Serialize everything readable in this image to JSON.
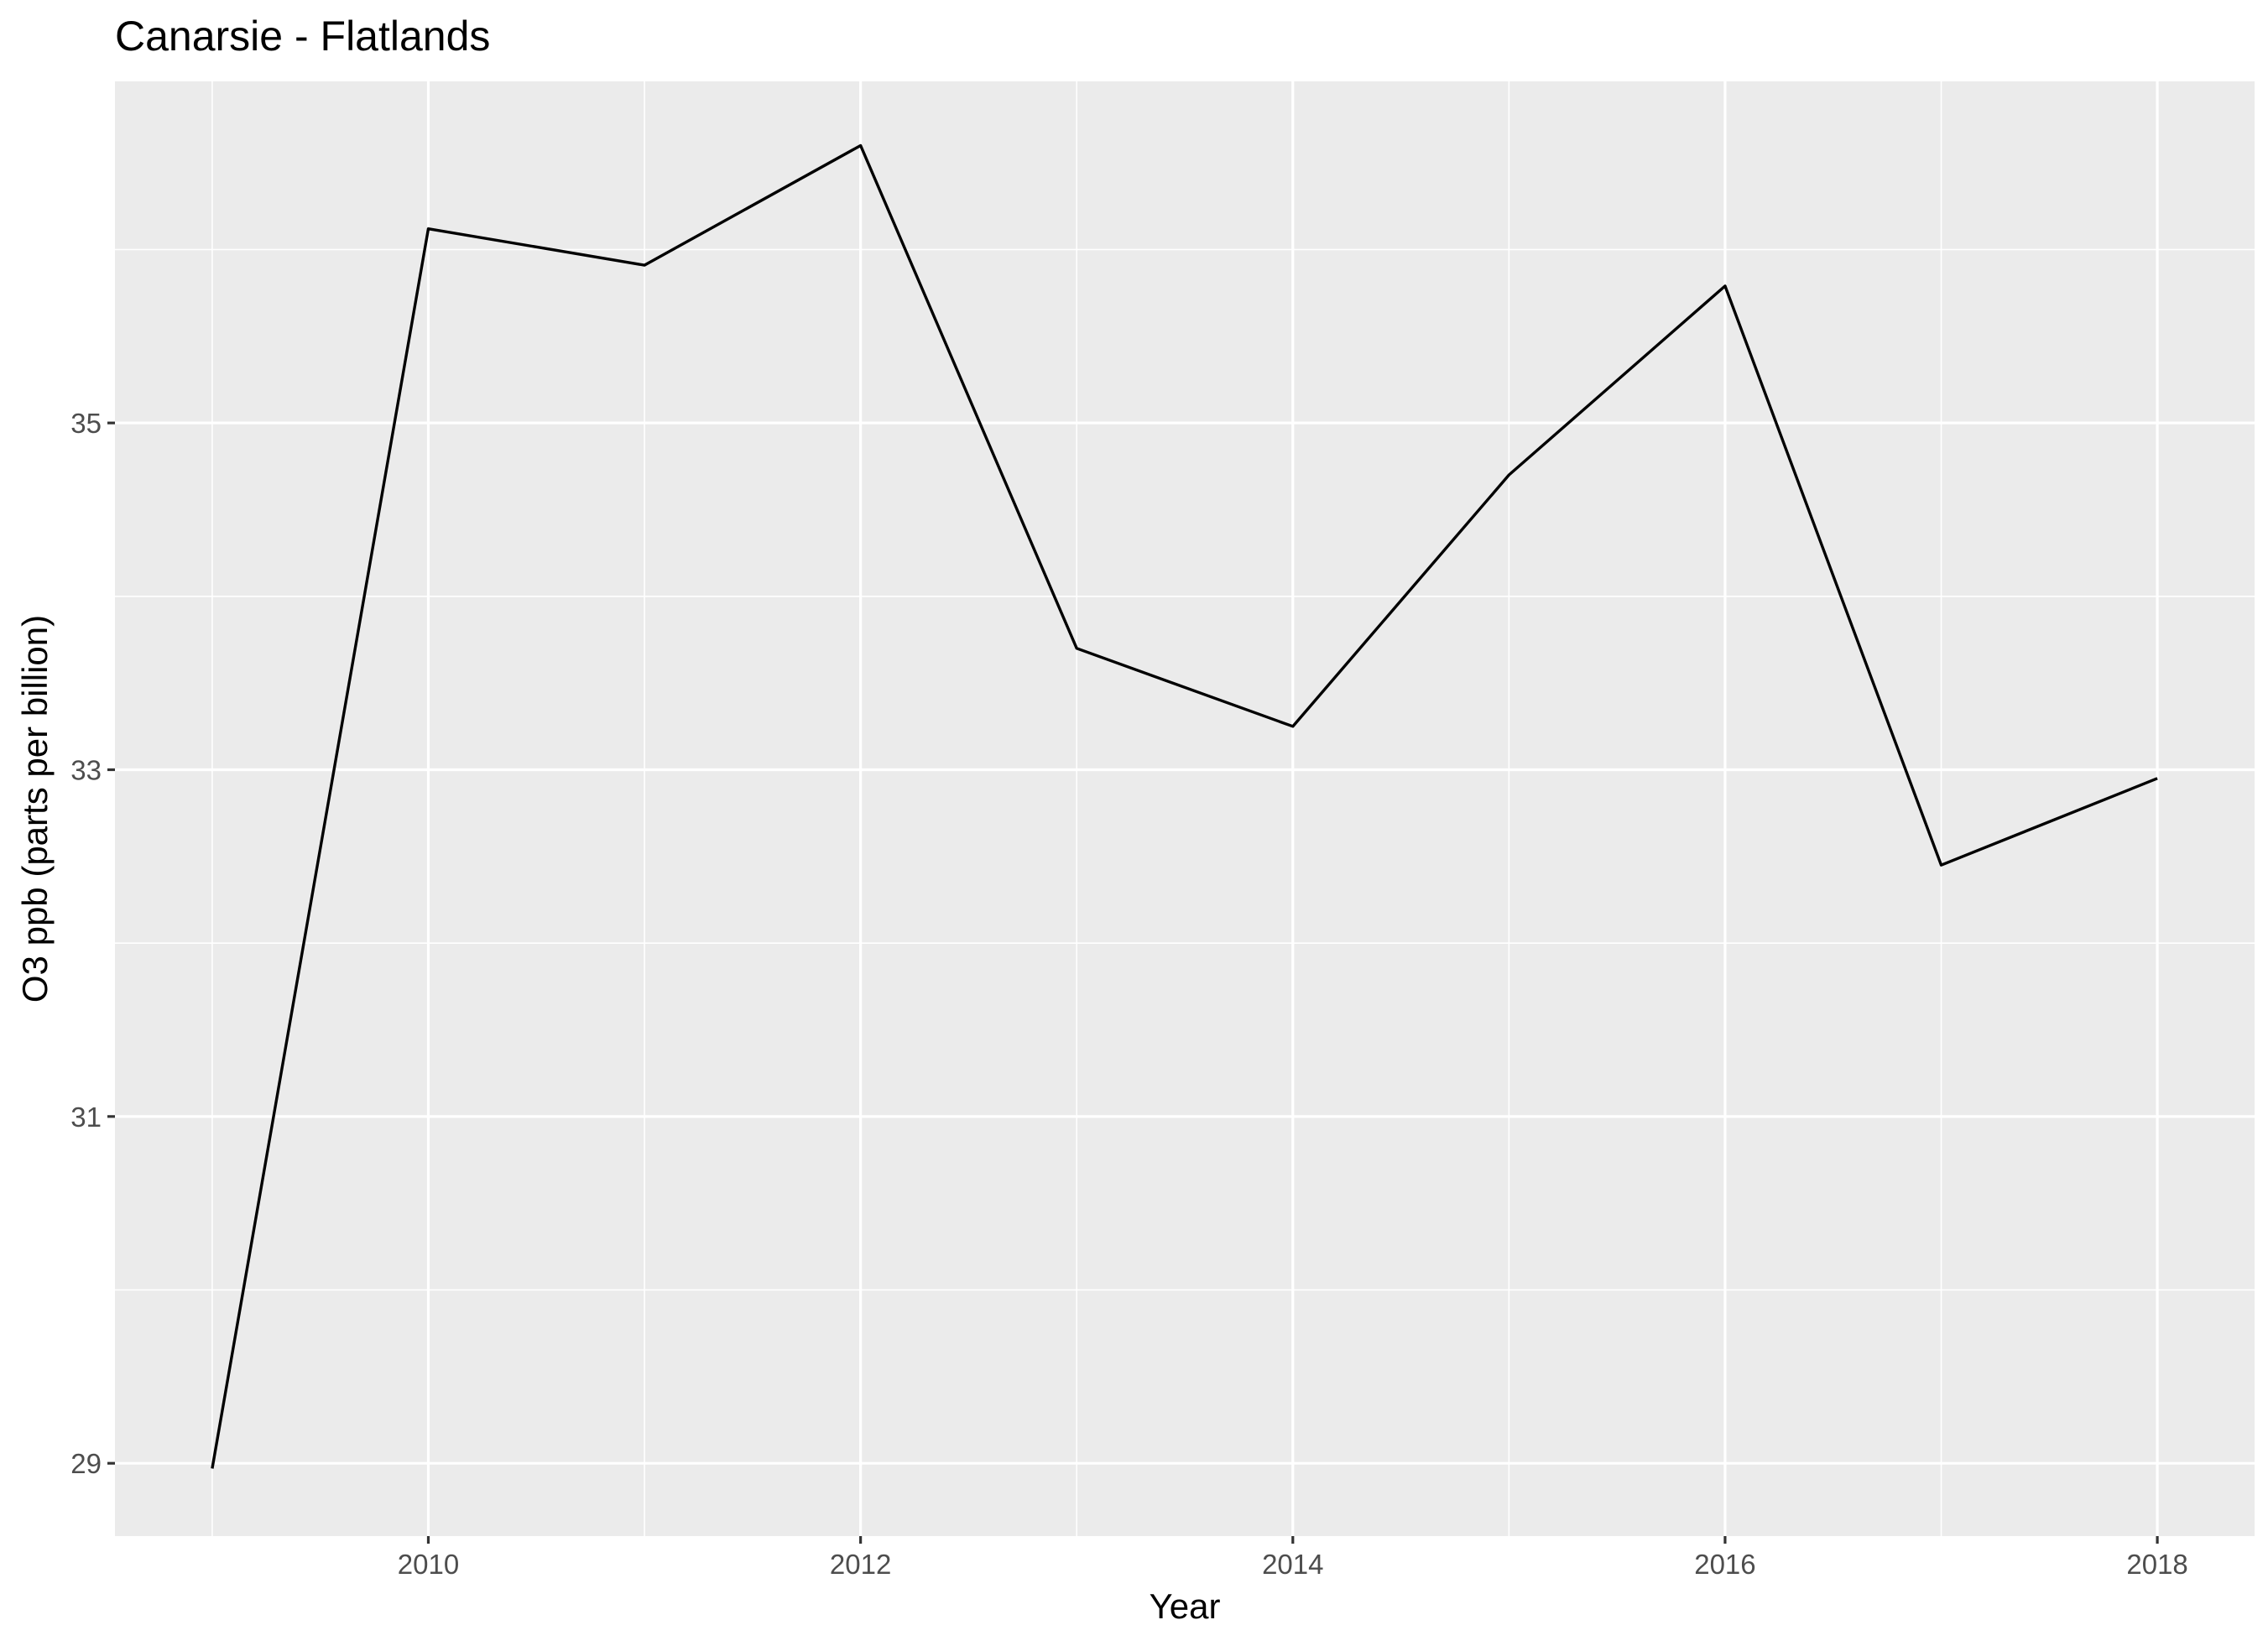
{
  "chart_data": {
    "type": "line",
    "title": "Canarsie - Flatlands",
    "xlabel": "Year",
    "ylabel": "O3 ppb (parts per billion)",
    "x": [
      2009,
      2010,
      2011,
      2012,
      2013,
      2014,
      2015,
      2016,
      2017,
      2018
    ],
    "series": [
      {
        "values": [
          28.97,
          36.12,
          35.91,
          36.6,
          33.7,
          33.25,
          34.7,
          35.79,
          32.45,
          32.95
        ]
      }
    ],
    "xlim": [
      2008.55,
      2018.45
    ],
    "ylim": [
      28.58,
      36.97
    ],
    "x_ticks": [
      2010,
      2012,
      2014,
      2016,
      2018
    ],
    "x_tick_labels": [
      "2010",
      "2012",
      "2014",
      "2016",
      "2018"
    ],
    "x_minor_ticks": [
      2009,
      2011,
      2013,
      2015,
      2017
    ],
    "y_ticks": [
      29,
      31,
      33,
      35
    ],
    "y_tick_labels": [
      "29",
      "31",
      "33",
      "35"
    ],
    "y_minor_ticks": [
      30,
      32,
      34,
      36
    ],
    "grid": true,
    "legend": "none",
    "colors": {
      "panel_background": "#ebebeb",
      "grid": "#ffffff",
      "line": "#000000",
      "tick_mark": "#333333",
      "tick_label": "#4d4d4d"
    }
  }
}
